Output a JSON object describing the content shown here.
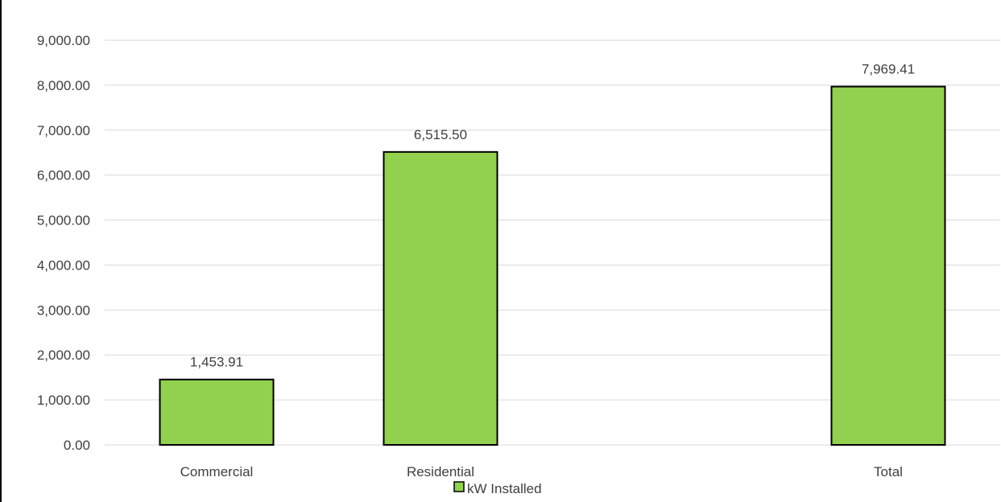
{
  "chart_data": {
    "type": "bar",
    "title": "",
    "categories": [
      "Commercial",
      "Residential",
      "",
      "Total"
    ],
    "series": [
      {
        "name": "kW Installed",
        "values": [
          1453.91,
          6515.5,
          null,
          7969.41
        ],
        "data_labels": [
          "1,453.91",
          "6,515.50",
          "",
          "7,969.41"
        ]
      }
    ],
    "ylim": [
      0,
      9000
    ],
    "y_ticks": [
      0,
      1000,
      2000,
      3000,
      4000,
      5000,
      6000,
      7000,
      8000,
      9000
    ],
    "y_tick_labels": [
      "0.00",
      "1,000.00",
      "2,000.00",
      "3,000.00",
      "4,000.00",
      "5,000.00",
      "6,000.00",
      "7,000.00",
      "8,000.00",
      "9,000.00"
    ],
    "grid": true,
    "legend_position": "bottom",
    "colors": {
      "bar_fill": "#92D050",
      "bar_stroke": "#000000",
      "gridline": "#D9D9D9",
      "text": "#404040"
    }
  }
}
